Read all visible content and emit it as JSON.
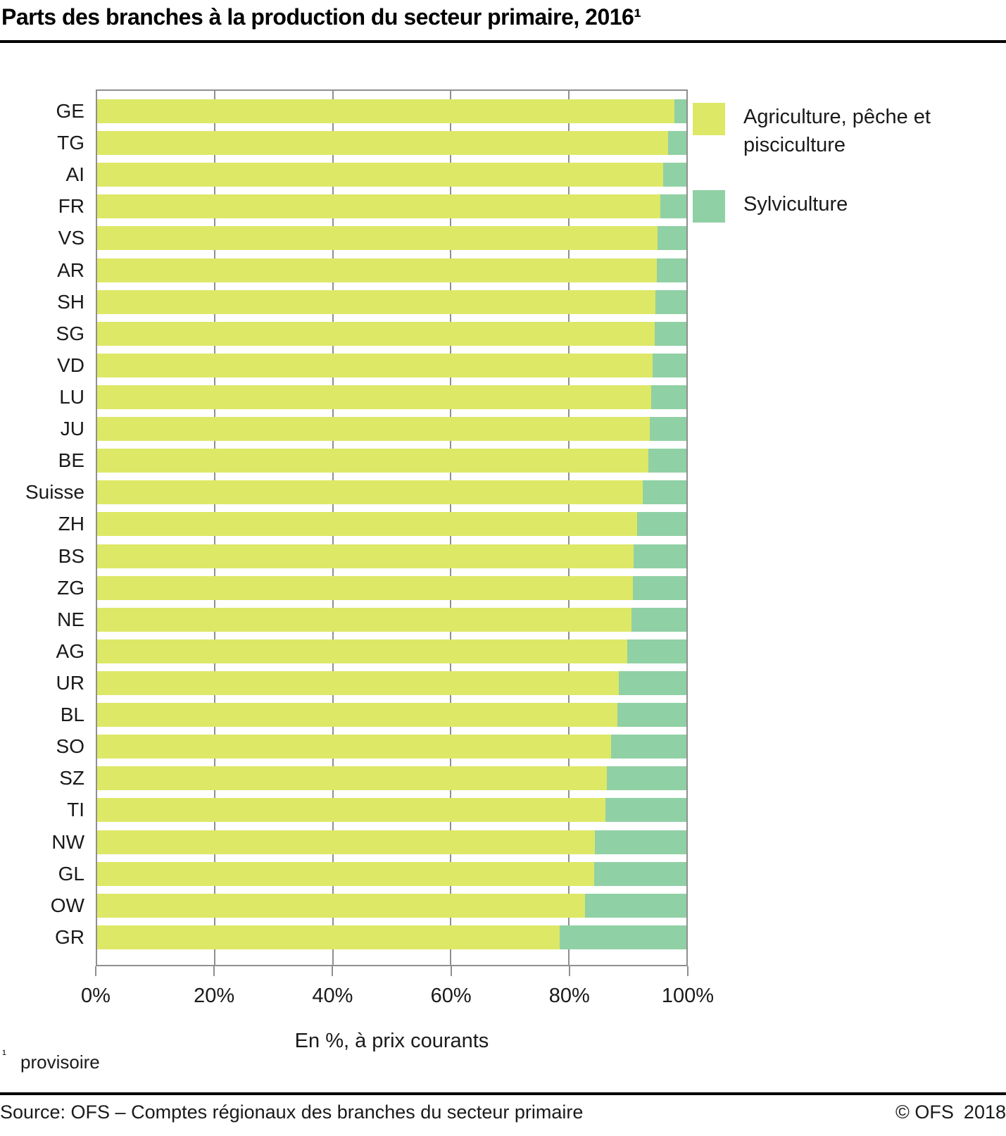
{
  "title": "Parts des branches à la production du secteur primaire, 2016¹",
  "chart_data": {
    "type": "bar",
    "orientation": "horizontal",
    "stacked": true,
    "unit": "percent",
    "xlim": [
      0,
      100
    ],
    "grid": true,
    "legend_position": "top-right",
    "xlabel": "En %, à prix courants",
    "x_ticks": [
      {
        "value": 0,
        "label": "0%"
      },
      {
        "value": 20,
        "label": "20%"
      },
      {
        "value": 40,
        "label": "40%"
      },
      {
        "value": 60,
        "label": "60%"
      },
      {
        "value": 80,
        "label": "80%"
      },
      {
        "value": 100,
        "label": "100%"
      }
    ],
    "categories": [
      "GE",
      "TG",
      "AI",
      "FR",
      "VS",
      "AR",
      "SH",
      "SG",
      "VD",
      "LU",
      "JU",
      "BE",
      "Suisse",
      "ZH",
      "BS",
      "ZG",
      "NE",
      "AG",
      "UR",
      "BL",
      "SO",
      "SZ",
      "TI",
      "NW",
      "GL",
      "OW",
      "GR"
    ],
    "series": [
      {
        "name": "Agriculture, pêche et pisciculture",
        "color": "#dde866",
        "values": [
          98.0,
          96.9,
          96.0,
          95.6,
          95.1,
          95.0,
          94.8,
          94.6,
          94.3,
          94.0,
          93.8,
          93.5,
          92.6,
          91.6,
          91.0,
          90.9,
          90.7,
          90.0,
          88.5,
          88.3,
          87.2,
          86.5,
          86.3,
          84.5,
          84.4,
          82.8,
          78.5
        ]
      },
      {
        "name": "Sylviculture",
        "color": "#90d0a5",
        "values": [
          2.0,
          3.1,
          4.0,
          4.4,
          4.9,
          5.0,
          5.2,
          5.4,
          5.7,
          6.0,
          6.2,
          6.5,
          7.4,
          8.4,
          9.0,
          9.1,
          9.3,
          10.0,
          11.5,
          11.7,
          12.8,
          13.5,
          13.7,
          15.5,
          15.6,
          17.2,
          21.5
        ]
      }
    ]
  },
  "styles": {
    "grid_color": "#8f8f8f"
  },
  "footnote": {
    "marker": "¹",
    "text": "provisoire"
  },
  "footer": {
    "source": "Source: OFS – Comptes régionaux des branches du secteur primaire",
    "copyright": "© OFS",
    "year": "2018"
  }
}
